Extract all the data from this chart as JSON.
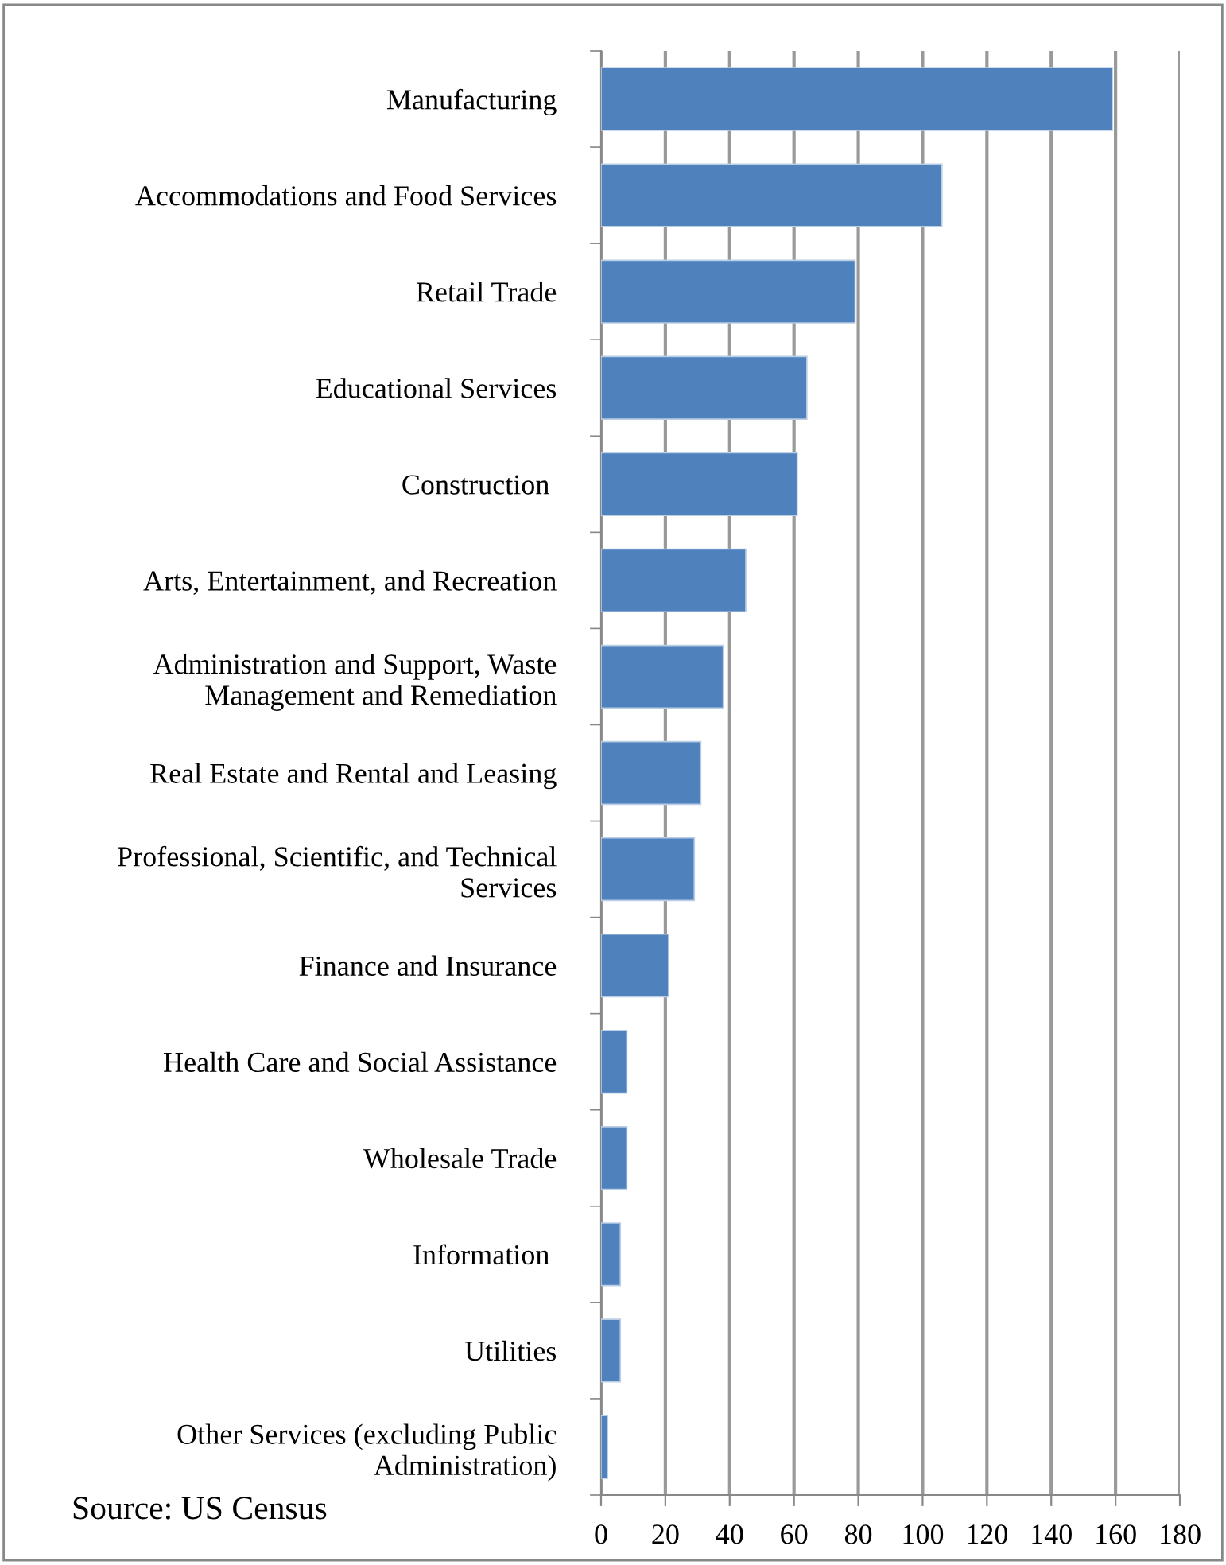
{
  "chart_data": {
    "type": "bar",
    "orientation": "horizontal",
    "categories": [
      "Manufacturing",
      "Accommodations and Food Services",
      "Retail Trade",
      "Educational Services",
      "Construction ",
      "Arts, Entertainment, and Recreation",
      "Administration and Support, Waste\nManagement and Remediation",
      "Real Estate and Rental and Leasing",
      "Professional, Scientific, and Technical\nServices",
      "Finance and Insurance",
      "Health Care and Social Assistance",
      "Wholesale Trade",
      "Information ",
      "Utilities",
      "Other Services (excluding Public\nAdministration)"
    ],
    "values": [
      159,
      106,
      79,
      64,
      61,
      45,
      38,
      31,
      29,
      21,
      8,
      8,
      6,
      6,
      2
    ],
    "color": "#4f81bd",
    "xlim": [
      0,
      180
    ],
    "xticks": [
      0,
      20,
      40,
      60,
      80,
      100,
      120,
      140,
      160,
      180
    ],
    "grid": "x",
    "annotations": [
      "Source: US Census"
    ]
  }
}
